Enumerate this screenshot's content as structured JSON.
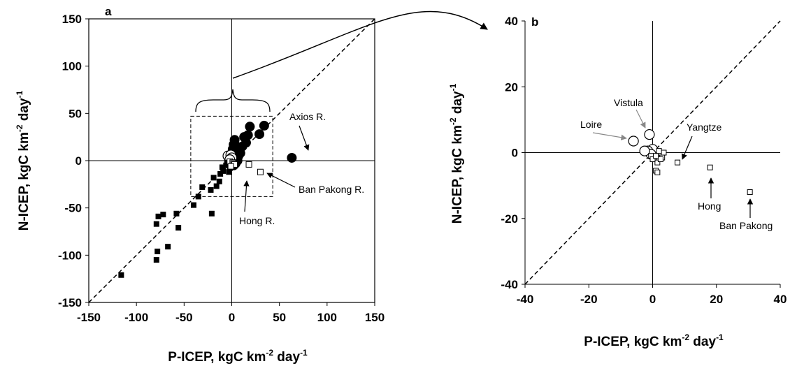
{
  "chart_data": [
    {
      "type": "scatter",
      "panel": "a",
      "xlabel": "P-ICEP, kgC km",
      "ylabel": "N-ICEP,  kgC km",
      "unit_tail": " day",
      "sup_neg2": "-2",
      "sup_neg1": "-1",
      "xlim": [
        -150,
        150
      ],
      "ylim": [
        -150,
        150
      ],
      "xticks": [
        -150,
        -100,
        -50,
        0,
        50,
        100,
        150
      ],
      "yticks": [
        -150,
        -100,
        -50,
        0,
        50,
        100,
        150
      ],
      "tick_labels_x": [
        "-150",
        "-100",
        "-50",
        "0",
        "50",
        "100",
        "150"
      ],
      "tick_labels_y": [
        "-150",
        "-100",
        "-50",
        "0",
        "50",
        "100",
        "150"
      ],
      "grid": false,
      "reference_line": "1:1 dashed",
      "zoom_box": {
        "x": [
          -43,
          43
        ],
        "y": [
          -38,
          47
        ]
      },
      "series": [
        {
          "marker": "filled-circle",
          "points": [
            [
              63,
              3
            ],
            [
              34,
              37
            ],
            [
              29,
              28
            ],
            [
              19,
              36
            ],
            [
              17,
              27
            ],
            [
              13,
              25
            ],
            [
              15,
              19
            ],
            [
              11,
              15
            ],
            [
              8,
              12
            ],
            [
              5,
              15
            ],
            [
              3,
              22
            ],
            [
              2,
              17
            ],
            [
              1,
              12
            ],
            [
              4,
              7
            ],
            [
              7,
              5
            ],
            [
              9,
              8
            ],
            [
              6,
              0
            ],
            [
              4,
              -3
            ],
            [
              2,
              -5
            ]
          ]
        },
        {
          "marker": "open-circle",
          "points": [
            [
              -4,
              5
            ],
            [
              -1,
              6
            ],
            [
              0,
              3
            ],
            [
              -2,
              1
            ]
          ]
        },
        {
          "marker": "filled-square",
          "points": [
            [
              -116,
              -121
            ],
            [
              -79,
              -105
            ],
            [
              -78,
              -96
            ],
            [
              -67,
              -91
            ],
            [
              -79,
              -67
            ],
            [
              -77,
              -59
            ],
            [
              -72,
              -57
            ],
            [
              -56,
              -71
            ],
            [
              -58,
              -56
            ],
            [
              -40,
              -47
            ],
            [
              -35,
              -38
            ],
            [
              -31,
              -28
            ],
            [
              -21,
              -56
            ],
            [
              -22,
              -31
            ],
            [
              -19,
              -18
            ],
            [
              -16,
              -27
            ],
            [
              -13,
              -22
            ],
            [
              -12,
              -14
            ],
            [
              -10,
              -7
            ],
            [
              -9,
              -11
            ],
            [
              -6,
              -5
            ],
            [
              -5,
              -2
            ],
            [
              -3,
              -12
            ],
            [
              -2,
              -8
            ],
            [
              -1,
              -4
            ]
          ]
        },
        {
          "marker": "open-square",
          "points": [
            [
              -2,
              -1
            ],
            [
              1,
              -2
            ],
            [
              2,
              -3
            ],
            [
              3,
              -4
            ],
            [
              -1,
              -6
            ],
            [
              18,
              -4
            ],
            [
              30,
              -12
            ]
          ]
        }
      ],
      "annotations": [
        {
          "text": "Axios R.",
          "target": [
            63,
            3
          ]
        },
        {
          "text": "Ban Pakong R.",
          "target": [
            30,
            -12
          ]
        },
        {
          "text": "Hong R.",
          "target": [
            18,
            -4
          ]
        }
      ]
    },
    {
      "type": "scatter",
      "panel": "b",
      "xlabel": "P-ICEP, kgC km",
      "ylabel": "N-ICEP,  kgC km",
      "unit_tail": " day",
      "sup_neg2": "-2",
      "sup_neg1": "-1",
      "xlim": [
        -40,
        40
      ],
      "ylim": [
        -40,
        40
      ],
      "xticks": [
        -40,
        -20,
        0,
        20,
        40
      ],
      "yticks": [
        -40,
        -20,
        0,
        20,
        40
      ],
      "tick_labels_x": [
        "-40",
        "-20",
        "0",
        "20",
        "40"
      ],
      "tick_labels_y": [
        "-40",
        "-20",
        "0",
        "20",
        "40"
      ],
      "grid": false,
      "reference_line": "1:1 dashed",
      "series": [
        {
          "marker": "open-circle",
          "points": [
            [
              -6,
              3.5
            ],
            [
              -1,
              5.5
            ],
            [
              0,
              1
            ],
            [
              -1.5,
              0.5
            ],
            [
              -0.5,
              -0.5
            ],
            [
              -2.5,
              0.5
            ]
          ]
        },
        {
          "marker": "open-square",
          "points": [
            [
              18,
              -4.5
            ],
            [
              30.5,
              -12
            ],
            [
              7.8,
              -3
            ],
            [
              2.5,
              0
            ],
            [
              3.5,
              0
            ],
            [
              2,
              -1.5
            ],
            [
              3,
              -1.5
            ],
            [
              1.5,
              -3
            ],
            [
              2.5,
              -2
            ],
            [
              1,
              -5.5
            ],
            [
              1.5,
              -6
            ],
            [
              0.5,
              -1.5
            ],
            [
              -0.5,
              -1
            ],
            [
              0,
              -2
            ],
            [
              1,
              -1
            ],
            [
              2,
              0.5
            ]
          ]
        }
      ],
      "annotations": [
        {
          "text": "Vistula",
          "target": [
            -1,
            5.5
          ]
        },
        {
          "text": "Loire",
          "target": [
            -6,
            3.5
          ]
        },
        {
          "text": "Yangtze",
          "target": [
            7.8,
            -3
          ]
        },
        {
          "text": "Hong",
          "target": [
            18,
            -4.5
          ]
        },
        {
          "text": "Ban Pakong",
          "target": [
            30.5,
            -12
          ]
        }
      ]
    }
  ]
}
